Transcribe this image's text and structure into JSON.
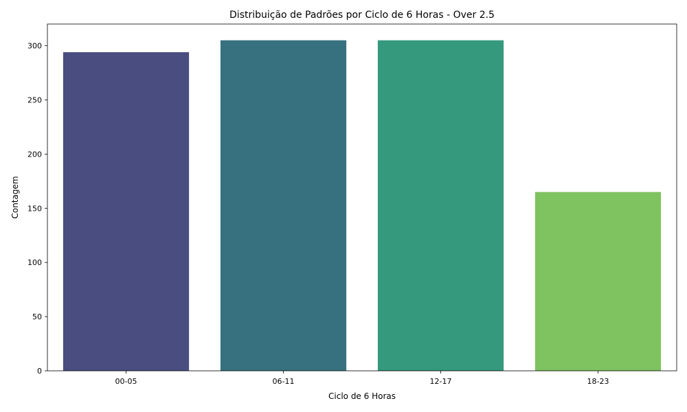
{
  "chart_data": {
    "type": "bar",
    "title": "Distribuição de Padrões por Ciclo de 6 Horas - Over 2.5",
    "xlabel": "Ciclo de 6 Horas",
    "ylabel": "Contagem",
    "categories": [
      "00-05",
      "06-11",
      "12-17",
      "18-23"
    ],
    "values": [
      294,
      305,
      305,
      165
    ],
    "colors": [
      "#4a4d7f",
      "#37717f",
      "#35997d",
      "#7fc260"
    ],
    "ylim": [
      0,
      320
    ],
    "yticks": [
      0,
      50,
      100,
      150,
      200,
      250,
      300
    ],
    "grid": false,
    "legend": "none"
  }
}
